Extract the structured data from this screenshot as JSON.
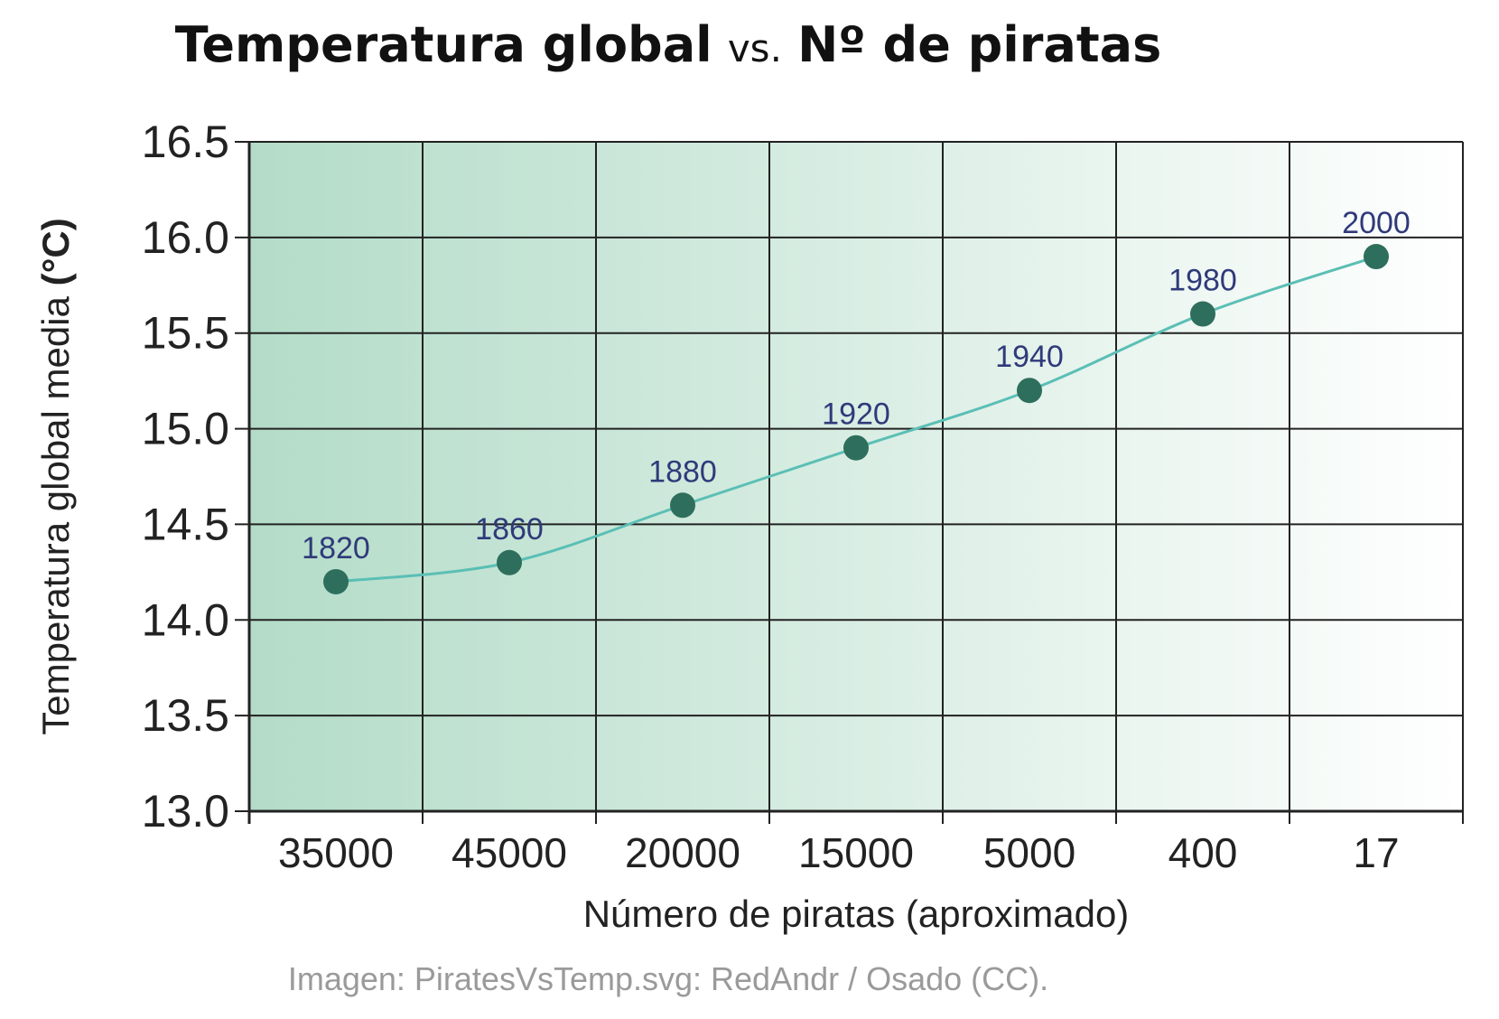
{
  "title": {
    "part1": "Temperatura global",
    "vs": "vs.",
    "part2": "Nº de piratas"
  },
  "credit": "Imagen: PiratesVsTemp.svg: RedAndr / Osado (CC).",
  "colors": {
    "point": "#2e6e5c",
    "line": "#5bbfb5",
    "bg_left": "#b3dcc8",
    "bg_right": "#ffffff",
    "grid": "#222222",
    "label": "#2f3a7a"
  },
  "chart_data": {
    "type": "line",
    "title": "Temperatura global vs. Nº de piratas",
    "xlabel": "Número de piratas (aproximado)",
    "ylabel": "Temperatura global media (°C)",
    "categories": [
      "35000",
      "45000",
      "20000",
      "15000",
      "5000",
      "400",
      "17"
    ],
    "point_labels": [
      "1820",
      "1860",
      "1880",
      "1920",
      "1940",
      "1980",
      "2000"
    ],
    "values": [
      14.2,
      14.3,
      14.6,
      14.9,
      15.2,
      15.6,
      15.9
    ],
    "ylim": [
      13.0,
      16.5
    ],
    "yticks": [
      "13.0",
      "13.5",
      "14.0",
      "14.5",
      "15.0",
      "15.5",
      "16.0",
      "16.5"
    ],
    "grid": true
  }
}
